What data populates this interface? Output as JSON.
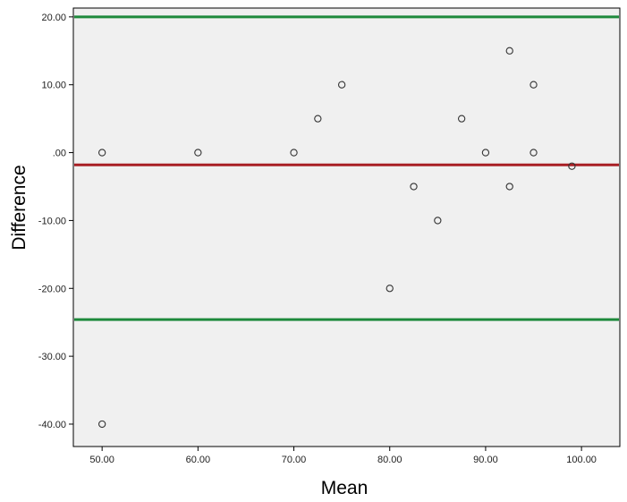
{
  "chart_data": {
    "type": "scatter",
    "title": "",
    "xlabel": "Mean",
    "ylabel": "Difference",
    "xlim": [
      47,
      104
    ],
    "ylim": [
      -43.3,
      21.3
    ],
    "x_ticks": [
      50,
      60,
      70,
      80,
      90,
      100
    ],
    "x_tick_labels": [
      "50.00",
      "60.00",
      "70.00",
      "80.00",
      "90.00",
      "100.00"
    ],
    "y_ticks": [
      20,
      10,
      0,
      -10,
      -20,
      -30,
      -40
    ],
    "y_tick_labels": [
      "20.00",
      "10.00",
      ".00",
      "-10.00",
      "-20.00",
      "-30.00",
      "-40.00"
    ],
    "points": [
      {
        "x": 50,
        "y": 0
      },
      {
        "x": 50,
        "y": -40
      },
      {
        "x": 60,
        "y": 0
      },
      {
        "x": 70,
        "y": 0
      },
      {
        "x": 72.5,
        "y": 5
      },
      {
        "x": 75,
        "y": 10
      },
      {
        "x": 80,
        "y": -20
      },
      {
        "x": 82.5,
        "y": -5
      },
      {
        "x": 85,
        "y": -10
      },
      {
        "x": 87.5,
        "y": 5
      },
      {
        "x": 90,
        "y": 0
      },
      {
        "x": 92.5,
        "y": 15
      },
      {
        "x": 92.5,
        "y": -5
      },
      {
        "x": 95,
        "y": 10
      },
      {
        "x": 95,
        "y": 0
      },
      {
        "x": 99,
        "y": -2
      }
    ],
    "reference_lines": [
      {
        "y": 20.0,
        "color": "#1e8a3c"
      },
      {
        "y": -1.8,
        "color": "#a81f24"
      },
      {
        "y": -24.6,
        "color": "#1e8a3c"
      }
    ],
    "plot_background": "#f0f0f0",
    "grid": false
  }
}
